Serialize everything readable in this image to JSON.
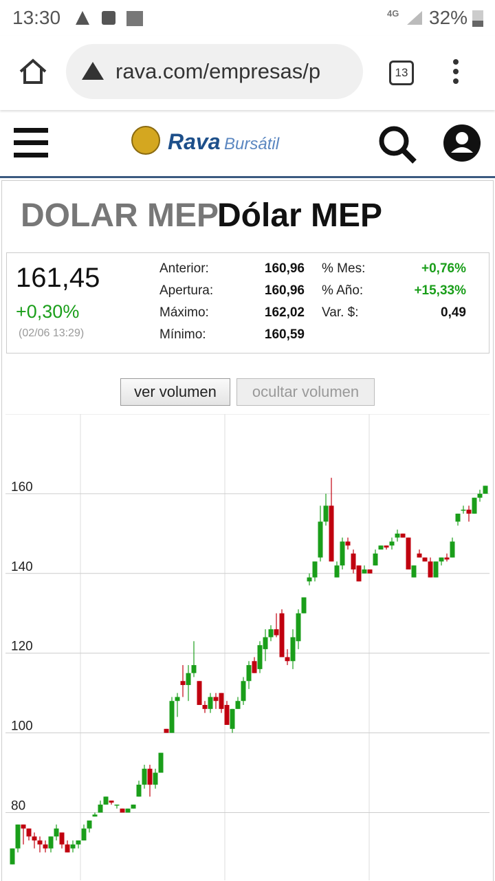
{
  "status_bar": {
    "time": "13:30",
    "network": "4G",
    "battery": "32%"
  },
  "browser": {
    "url": "rava.com/empresas/p",
    "tabs": "13"
  },
  "site": {
    "logo_main": "Rava",
    "logo_sub": "Bursátil"
  },
  "quote": {
    "symbol": "DOLAR MEP",
    "name": "Dólar MEP",
    "price": "161,45",
    "change": "+0,30%",
    "timestamp": "(02/06 13:29)",
    "stats_left": [
      [
        "Anterior:",
        "160,96"
      ],
      [
        "Apertura:",
        "160,96"
      ],
      [
        "Máximo:",
        "162,02"
      ],
      [
        "Mínimo:",
        "160,59"
      ]
    ],
    "stats_right": [
      [
        "% Mes:",
        "+0,76%"
      ],
      [
        "% Año:",
        "+15,33%"
      ],
      [
        "Var. $:",
        "0,49"
      ]
    ]
  },
  "buttons": [
    "ver volumen",
    "ocultar volumen"
  ],
  "chart_data": {
    "type": "candlestick",
    "ylim": [
      63,
      180
    ],
    "yticks": [
      80,
      100,
      120,
      140,
      160
    ],
    "grid": true,
    "up_color": "#1a9e1a",
    "down_color": "#c0000f",
    "open": [
      67,
      71,
      77,
      76,
      74,
      73,
      72,
      71,
      74,
      75,
      72,
      71,
      72,
      73,
      76,
      79,
      80,
      82,
      83,
      82,
      81,
      80,
      81,
      84,
      87,
      91,
      87,
      90,
      101,
      100,
      108,
      113,
      112,
      115,
      113,
      107,
      106,
      109,
      110,
      107,
      101,
      106,
      108,
      113,
      118,
      116,
      121,
      124,
      126,
      130,
      119,
      118,
      123,
      130,
      138,
      139,
      144,
      153,
      157,
      139,
      142,
      148,
      145,
      142,
      140,
      141,
      142,
      146,
      147,
      147,
      149,
      150,
      149,
      139,
      145,
      144,
      143,
      139,
      143,
      144,
      144,
      153,
      156,
      156,
      155,
      159,
      160
    ],
    "high": [
      71,
      77,
      77,
      76,
      75,
      74,
      73,
      74,
      77,
      75,
      73,
      73,
      73,
      77,
      78,
      80,
      83,
      84,
      83,
      82,
      81,
      81,
      82,
      88,
      92,
      92,
      91,
      95,
      101,
      109,
      110,
      117,
      117,
      123,
      113,
      108,
      110,
      110,
      110,
      108,
      106,
      109,
      114,
      118,
      119,
      123,
      126,
      127,
      130,
      131,
      121,
      126,
      131,
      134,
      140,
      143,
      157,
      160,
      164,
      143,
      149,
      149,
      146,
      142,
      142,
      141,
      146,
      147,
      147,
      149,
      151,
      150,
      149,
      142,
      146,
      144,
      144,
      143,
      144,
      145,
      149,
      155,
      157,
      157,
      159,
      161,
      162
    ],
    "low": [
      67,
      70,
      72,
      73,
      71,
      70,
      70,
      70,
      73,
      71,
      70,
      70,
      71,
      73,
      75,
      79,
      80,
      82,
      82,
      81,
      80,
      80,
      81,
      84,
      86,
      84,
      86,
      90,
      100,
      100,
      104,
      109,
      108,
      114,
      107,
      105,
      105,
      106,
      105,
      102,
      100,
      106,
      107,
      111,
      115,
      115,
      118,
      123,
      124,
      119,
      117,
      116,
      121,
      130,
      137,
      138,
      143,
      152,
      143,
      139,
      141,
      146,
      140,
      138,
      140,
      140,
      142,
      146,
      146,
      146,
      148,
      149,
      141,
      139,
      144,
      143,
      139,
      139,
      142,
      143,
      144,
      152,
      155,
      153,
      155,
      158,
      160
    ],
    "close": [
      71,
      77,
      76,
      74,
      73,
      72,
      71,
      74,
      76,
      72,
      70,
      72,
      73,
      76,
      78,
      79.5,
      82,
      84,
      82.5,
      82,
      80,
      81,
      82,
      87,
      91,
      87,
      90,
      95,
      100,
      108,
      109,
      112,
      115,
      117,
      107,
      106,
      109,
      108,
      106,
      102,
      106,
      108,
      113,
      117,
      115,
      122,
      124,
      126,
      124.5,
      119,
      118,
      124,
      130,
      134,
      139,
      143,
      153,
      157,
      143,
      142,
      148,
      147,
      141,
      138,
      141,
      140,
      145,
      147,
      146.5,
      148,
      150,
      149,
      141,
      142,
      144,
      143,
      139,
      143,
      144,
      143.5,
      148,
      155,
      156,
      155,
      159,
      160,
      162
    ]
  }
}
